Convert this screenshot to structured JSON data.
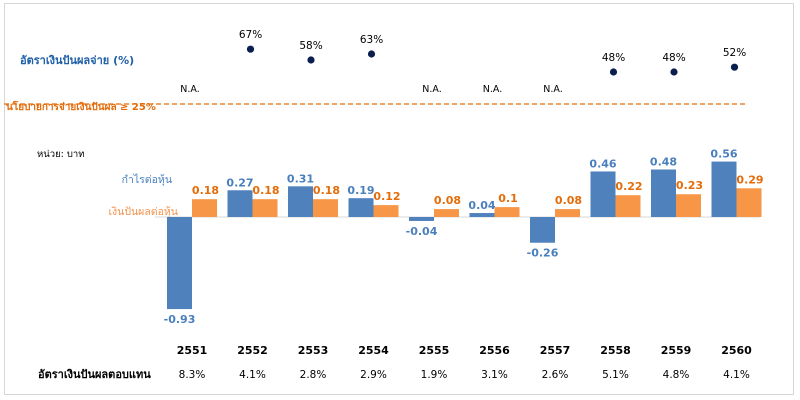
{
  "chart_data": {
    "type": "bar",
    "unit_label": "หน่วย: บาท",
    "categories": [
      "2551",
      "2552",
      "2553",
      "2554",
      "2555",
      "2556",
      "2557",
      "2558",
      "2559",
      "2560"
    ],
    "series": [
      {
        "name": "กำไรต่อหุ้น",
        "color": "#4F81BD",
        "values": [
          -0.93,
          0.27,
          0.31,
          0.19,
          -0.04,
          0.04,
          -0.26,
          0.46,
          0.48,
          0.56
        ],
        "labels": [
          "-0.93",
          "0.27",
          "0.31",
          "0.19",
          "-0.04",
          "0.04",
          "-0.26",
          "0.46",
          "0.48",
          "0.56"
        ]
      },
      {
        "name": "เงินปันผลต่อหุ้น",
        "color": "#F79646",
        "values": [
          0.18,
          0.18,
          0.18,
          0.12,
          0.08,
          0.1,
          0.08,
          0.22,
          0.23,
          0.29
        ],
        "labels": [
          "0.18",
          "0.18",
          "0.18",
          "0.12",
          "0.08",
          "0.1",
          "0.08",
          "0.22",
          "0.23",
          "0.29"
        ]
      }
    ],
    "payout_ratio": {
      "label": "อัตราเงินปันผลจ่าย (%)",
      "color": "#0B1F4F",
      "values": [
        null,
        67,
        58,
        63,
        null,
        null,
        null,
        48,
        48,
        52
      ],
      "labels": [
        "N.A.",
        "67%",
        "58%",
        "63%",
        "N.A.",
        "N.A.",
        "N.A.",
        "48%",
        "48%",
        "52%"
      ]
    },
    "policy": {
      "label": "นโยบายการจ่ายเงินปันผล ≥ 25%",
      "value": 25,
      "color": "#E46C0A"
    },
    "dividend_yield": {
      "label": "อัตราเงินปันผลตอบแทน",
      "labels": [
        "8.3%",
        "4.1%",
        "2.8%",
        "2.9%",
        "1.9%",
        "3.1%",
        "2.6%",
        "5.1%",
        "4.8%",
        "4.1%"
      ]
    }
  }
}
